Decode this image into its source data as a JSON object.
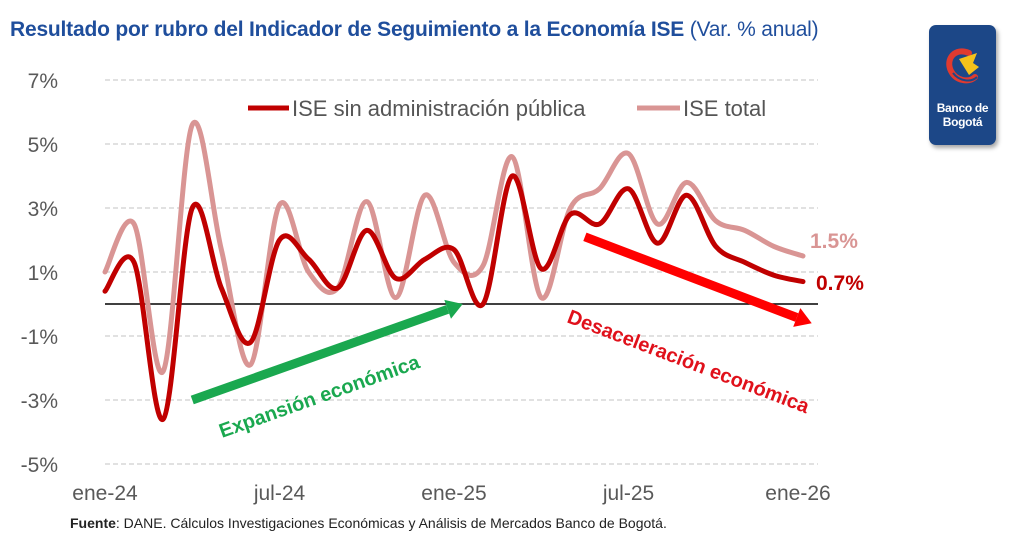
{
  "header": {
    "title_bold": "Resultado por rubro del Indicador de Seguimiento a la Economía ISE",
    "title_suffix": " (Var. % anual)"
  },
  "logo": {
    "line1": "Banco de",
    "line2": "Bogotá"
  },
  "colors": {
    "title": "#1f4e9c",
    "series_dark": "#c00000",
    "series_light": "#d99594",
    "arrow_up": "#1aa84f",
    "arrow_down": "#ff0000",
    "label_down": "#e0111b",
    "logo_bg": "#1c4787"
  },
  "chart_data": {
    "type": "line",
    "title": "Resultado por rubro del Indicador de Seguimiento a la Economía ISE (Var. % anual)",
    "xlabel": "",
    "ylabel": "",
    "ylim": [
      -5,
      7
    ],
    "yticks": [
      7,
      5,
      3,
      1,
      -1,
      -3,
      -5
    ],
    "ytick_labels": [
      "7%",
      "5%",
      "3%",
      "1%",
      "-1%",
      "-3%",
      "-5%"
    ],
    "x": [
      "ene-24",
      "feb-24",
      "mar-24",
      "abr-24",
      "may-24",
      "jun-24",
      "jul-24",
      "ago-24",
      "sep-24",
      "oct-24",
      "nov-24",
      "dic-24",
      "ene-25",
      "feb-25",
      "mar-25",
      "abr-25",
      "may-25",
      "jun-25",
      "jul-25",
      "ago-25",
      "sep-25",
      "oct-25",
      "nov-25",
      "dic-25",
      "ene-26"
    ],
    "xtick_labels": [
      {
        "index": 0,
        "label": "ene-24"
      },
      {
        "index": 6,
        "label": "jul-24"
      },
      {
        "index": 12,
        "label": "ene-25"
      },
      {
        "index": 18,
        "label": "jul-25"
      },
      {
        "index": 24,
        "label": "ene-26"
      }
    ],
    "grid": true,
    "legend_position": "top-center",
    "series": [
      {
        "name": "ISE sin administración pública",
        "color": "#c00000",
        "values": [
          0.4,
          1.3,
          -3.6,
          3.0,
          0.5,
          -1.2,
          2.0,
          1.4,
          0.5,
          2.3,
          0.8,
          1.4,
          1.7,
          0.0,
          4.0,
          1.1,
          2.8,
          2.5,
          3.6,
          1.9,
          3.4,
          1.8,
          1.3,
          0.9,
          0.7
        ],
        "end_label": "0.7%"
      },
      {
        "name": "ISE total",
        "color": "#d99594",
        "values": [
          1.0,
          2.5,
          -2.1,
          5.6,
          1.7,
          -1.9,
          3.1,
          1.0,
          0.5,
          3.2,
          0.2,
          3.4,
          1.3,
          1.2,
          4.6,
          0.2,
          3.0,
          3.6,
          4.7,
          2.5,
          3.8,
          2.6,
          2.3,
          1.8,
          1.5
        ],
        "end_label": "1.5%"
      }
    ],
    "annotations": [
      {
        "text": "Expansión económica",
        "type": "arrow-up",
        "from": {
          "x_index": 3,
          "y": -3.0
        },
        "to": {
          "x_index": 12.3,
          "y": 0.0
        }
      },
      {
        "text": "Desaceleración económica",
        "type": "arrow-down",
        "from": {
          "x_index": 16.5,
          "y": 2.1
        },
        "to": {
          "x_index": 24.3,
          "y": -0.6
        }
      }
    ]
  },
  "footer": {
    "source_label": "Fuente",
    "source_text": ": DANE. Cálculos Investigaciones Económicas y Análisis de Mercados Banco de Bogotá."
  }
}
